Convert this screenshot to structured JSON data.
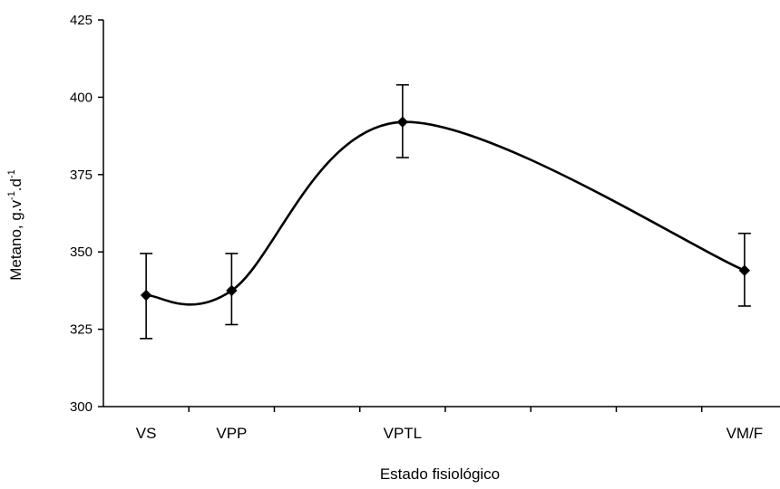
{
  "chart_data": {
    "type": "line",
    "title": "",
    "xlabel": "Estado fisiológico",
    "ylabel": {
      "main": "Metano, g.v",
      "sup1": "-1",
      "mid": ".d",
      "sup2": "-1"
    },
    "ylim": [
      300,
      425
    ],
    "yticks": [
      "300",
      "325",
      "350",
      "375",
      "400",
      "425"
    ],
    "x_slots": 8,
    "categories": [
      {
        "label": "VS",
        "slot": 0
      },
      {
        "label": "VPP",
        "slot": 1
      },
      {
        "label": "VPTL",
        "slot": 3
      },
      {
        "label": "VM/F",
        "slot": 7
      }
    ],
    "series": [
      {
        "values": [
          336,
          337.5,
          392,
          344
        ],
        "error_low": [
          322,
          326.5,
          380.5,
          332.5
        ],
        "error_high": [
          349.5,
          349.5,
          404,
          356
        ]
      }
    ],
    "smoothed": true,
    "marker": "diamond",
    "grid": false,
    "legend": "none",
    "line_color": "#000000"
  }
}
